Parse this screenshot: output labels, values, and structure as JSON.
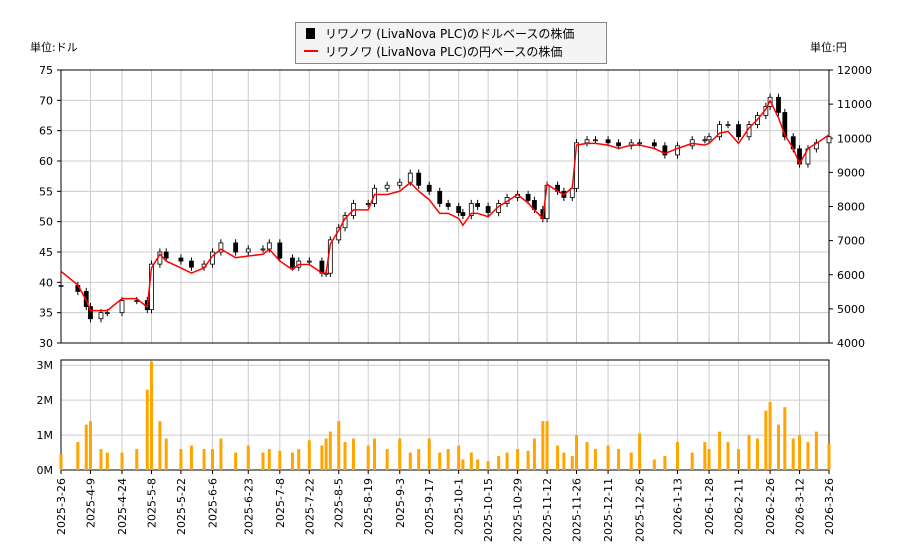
{
  "chart_data": [
    {
      "type": "candlestick+line",
      "left_unit_label": "単位:ドル",
      "right_unit_label": "単位:円",
      "legend": [
        "リワノワ (LivaNova PLC)のドルベースの株価",
        "リワノワ (LivaNova PLC)の円ベースの株価"
      ],
      "legend_placement": "top-center",
      "ylim_left": [
        30,
        75
      ],
      "yticks_left": [
        30,
        35,
        40,
        45,
        50,
        55,
        60,
        65,
        70,
        75
      ],
      "ylim_right": [
        4000,
        12000
      ],
      "yticks_right": [
        4000,
        5000,
        6000,
        7000,
        8000,
        9000,
        10000,
        11000,
        12000
      ],
      "grid": true,
      "colors": {
        "usd": "#000000",
        "jpy": "#ff0000",
        "volume": "#ffa500"
      },
      "dates": [
        "2025-03-26",
        "2025-04-03",
        "2025-04-07",
        "2025-04-09",
        "2025-04-14",
        "2025-04-17",
        "2025-04-24",
        "2025-05-01",
        "2025-05-06",
        "2025-05-08",
        "2025-05-12",
        "2025-05-15",
        "2025-05-22",
        "2025-05-27",
        "2025-06-02",
        "2025-06-06",
        "2025-06-10",
        "2025-06-17",
        "2025-06-23",
        "2025-06-30",
        "2025-07-03",
        "2025-07-08",
        "2025-07-14",
        "2025-07-17",
        "2025-07-22",
        "2025-07-28",
        "2025-07-30",
        "2025-08-01",
        "2025-08-05",
        "2025-08-08",
        "2025-08-12",
        "2025-08-19",
        "2025-08-22",
        "2025-08-28",
        "2025-09-03",
        "2025-09-08",
        "2025-09-12",
        "2025-09-17",
        "2025-09-22",
        "2025-09-26",
        "2025-10-01",
        "2025-10-03",
        "2025-10-07",
        "2025-10-10",
        "2025-10-15",
        "2025-10-20",
        "2025-10-24",
        "2025-10-29",
        "2025-11-03",
        "2025-11-06",
        "2025-11-10",
        "2025-11-12",
        "2025-11-17",
        "2025-11-20",
        "2025-11-24",
        "2025-11-26",
        "2025-12-01",
        "2025-12-05",
        "2025-12-11",
        "2025-12-16",
        "2025-12-22",
        "2025-12-26",
        "2026-01-02",
        "2026-01-07",
        "2026-01-13",
        "2026-01-20",
        "2026-01-26",
        "2026-01-28",
        "2026-02-02",
        "2026-02-06",
        "2026-02-11",
        "2026-02-16",
        "2026-02-20",
        "2026-02-24",
        "2026-02-26",
        "2026-03-02",
        "2026-03-05",
        "2026-03-09",
        "2026-03-12",
        "2026-03-16",
        "2026-03-20",
        "2026-03-26"
      ],
      "usd_close": [
        39.5,
        38.5,
        36,
        34,
        35,
        35,
        37,
        37,
        35.5,
        43,
        45,
        44,
        43.5,
        42.5,
        43,
        45,
        46.5,
        45,
        45.5,
        45.5,
        46.5,
        44,
        42.5,
        43.5,
        43.5,
        41.5,
        41.5,
        47,
        49,
        51,
        53,
        53,
        55.5,
        56,
        56.5,
        58,
        56,
        55,
        53,
        52.5,
        51.5,
        51,
        53,
        52.5,
        51.5,
        53,
        54,
        54.5,
        53.5,
        52,
        50.5,
        56,
        55,
        54,
        55.5,
        63,
        63.5,
        63.5,
        63,
        62.5,
        63,
        63,
        62.5,
        61,
        62.5,
        63.5,
        63.5,
        64,
        66,
        66,
        64,
        66,
        67.5,
        69,
        70.5,
        68,
        64,
        62,
        59.5,
        62,
        63,
        64
      ],
      "jpy_close": [
        6100,
        5700,
        5250,
        4950,
        4950,
        4950,
        5300,
        5300,
        5050,
        6200,
        6600,
        6400,
        6200,
        6050,
        6200,
        6550,
        6750,
        6500,
        6550,
        6600,
        6750,
        6400,
        6150,
        6300,
        6300,
        6050,
        6050,
        6900,
        7300,
        7650,
        7900,
        7900,
        8350,
        8350,
        8450,
        8700,
        8450,
        8200,
        7800,
        7800,
        7650,
        7450,
        7800,
        7800,
        7700,
        8000,
        8150,
        8350,
        8100,
        7900,
        7650,
        8650,
        8450,
        8350,
        8550,
        9800,
        9850,
        9850,
        9800,
        9700,
        9800,
        9800,
        9700,
        9550,
        9700,
        9850,
        9800,
        9850,
        10150,
        10200,
        9850,
        10300,
        10550,
        10850,
        11100,
        10600,
        10100,
        9700,
        9250,
        9700,
        9850,
        10100
      ],
      "volume_millions": [
        0.45,
        0.8,
        1.3,
        1.4,
        0.6,
        0.5,
        0.5,
        0.6,
        2.3,
        3.1,
        1.4,
        0.9,
        0.6,
        0.7,
        0.6,
        0.6,
        0.9,
        0.5,
        0.7,
        0.5,
        0.6,
        0.55,
        0.5,
        0.6,
        0.85,
        0.7,
        0.9,
        1.1,
        1.4,
        0.8,
        0.9,
        0.7,
        0.9,
        0.6,
        0.9,
        0.5,
        0.6,
        0.9,
        0.5,
        0.6,
        0.7,
        0.3,
        0.5,
        0.3,
        0.25,
        0.4,
        0.5,
        0.6,
        0.55,
        0.9,
        1.4,
        1.4,
        0.7,
        0.5,
        0.4,
        1.0,
        0.8,
        0.6,
        0.7,
        0.6,
        0.5,
        1.05,
        0.3,
        0.4,
        0.8,
        0.5,
        0.8,
        0.6,
        1.1,
        0.8,
        0.6,
        1.0,
        0.9,
        1.7,
        1.95,
        1.3,
        1.8,
        0.9,
        1.0,
        0.8,
        1.1,
        0.75
      ],
      "volume_ylim": [
        0,
        3.15
      ],
      "volume_yticks": [
        "0M",
        "1M",
        "2M",
        "3M"
      ],
      "xtick_labels": [
        "2025-3-26",
        "2025-4-9",
        "2025-4-24",
        "2025-5-8",
        "2025-5-22",
        "2025-6-6",
        "2025-6-23",
        "2025-7-8",
        "2025-7-22",
        "2025-8-5",
        "2025-8-19",
        "2025-9-3",
        "2025-9-17",
        "2025-10-1",
        "2025-10-15",
        "2025-10-29",
        "2025-11-12",
        "2025-11-26",
        "2025-12-11",
        "2025-12-26",
        "2026-1-13",
        "2026-1-28",
        "2026-2-11",
        "2026-2-26",
        "2026-3-12",
        "2026-3-26"
      ]
    }
  ]
}
